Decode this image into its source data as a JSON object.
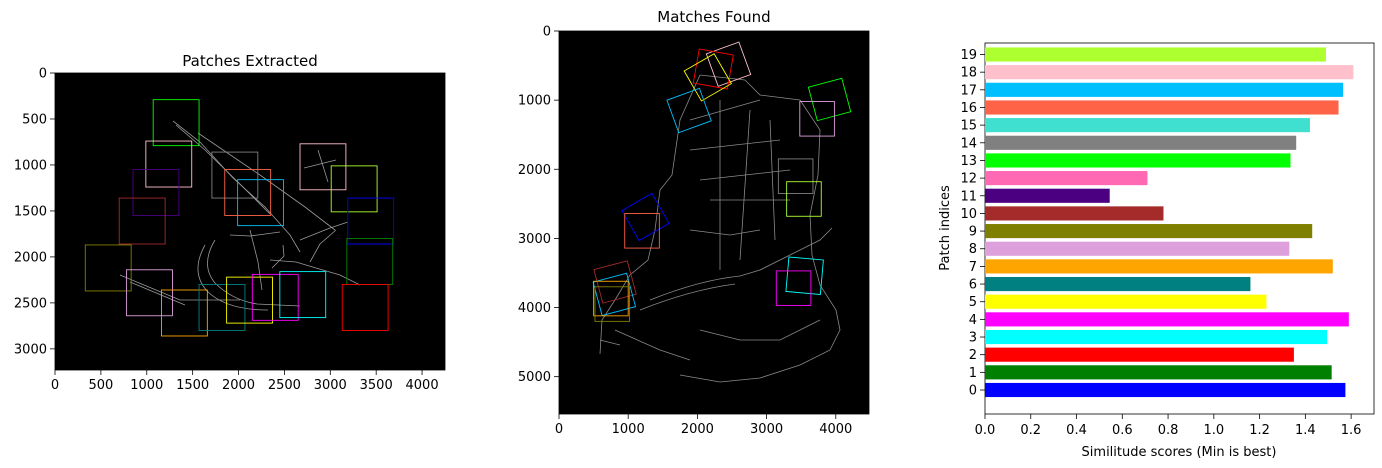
{
  "chart_data": [
    {
      "type": "image",
      "title": "Patches Extracted",
      "xlim": [
        0,
        4250
      ],
      "ylim": [
        3230,
        0
      ],
      "xticks": [
        0,
        500,
        1000,
        1500,
        2000,
        2500,
        3000,
        3500,
        4000
      ],
      "yticks": [
        0,
        500,
        1000,
        1500,
        2000,
        2500,
        3000
      ],
      "patches": [
        {
          "color": "#00ff00",
          "x": 1070,
          "y": 290,
          "w": 500,
          "h": 500
        },
        {
          "color": "#ffc0cb",
          "x": 990,
          "y": 740,
          "w": 500,
          "h": 500
        },
        {
          "color": "#808080",
          "x": 1710,
          "y": 860,
          "w": 500,
          "h": 500
        },
        {
          "color": "#ffc0cb",
          "x": 2670,
          "y": 770,
          "w": 500,
          "h": 500
        },
        {
          "color": "#4b0082",
          "x": 850,
          "y": 1050,
          "w": 500,
          "h": 500
        },
        {
          "color": "#ff6347",
          "x": 1850,
          "y": 1050,
          "w": 500,
          "h": 500
        },
        {
          "color": "#00bfff",
          "x": 1990,
          "y": 1160,
          "w": 500,
          "h": 500
        },
        {
          "color": "#adff2f",
          "x": 3010,
          "y": 1010,
          "w": 500,
          "h": 500
        },
        {
          "color": "#a52a2a",
          "x": 700,
          "y": 1360,
          "w": 500,
          "h": 500
        },
        {
          "color": "#0000ff",
          "x": 3190,
          "y": 1360,
          "w": 500,
          "h": 500
        },
        {
          "color": "#008000",
          "x": 3180,
          "y": 1800,
          "w": 500,
          "h": 500
        },
        {
          "color": "#808000",
          "x": 330,
          "y": 1870,
          "w": 500,
          "h": 500
        },
        {
          "color": "#dda0dd",
          "x": 780,
          "y": 2140,
          "w": 500,
          "h": 500
        },
        {
          "color": "#ffa500",
          "x": 1160,
          "y": 2360,
          "w": 500,
          "h": 500
        },
        {
          "color": "#008080",
          "x": 1570,
          "y": 2300,
          "w": 500,
          "h": 500
        },
        {
          "color": "#ffff00",
          "x": 1870,
          "y": 2220,
          "w": 500,
          "h": 500
        },
        {
          "color": "#ff00ff",
          "x": 2150,
          "y": 2190,
          "w": 500,
          "h": 500
        },
        {
          "color": "#00ffff",
          "x": 2450,
          "y": 2160,
          "w": 500,
          "h": 500
        },
        {
          "color": "#ff0000",
          "x": 3130,
          "y": 2300,
          "w": 500,
          "h": 500
        }
      ]
    },
    {
      "type": "image",
      "title": "Matches Found",
      "xlim": [
        0,
        4480
      ],
      "ylim": [
        5540,
        0
      ],
      "xticks": [
        0,
        1000,
        2000,
        3000,
        4000
      ],
      "yticks": [
        0,
        1000,
        2000,
        3000,
        4000,
        5000
      ],
      "patches": [
        {
          "color": "#ffc0cb",
          "x": 2200,
          "y": 230,
          "w": 500,
          "h": 500,
          "rot": -20
        },
        {
          "color": "#ff0000",
          "x": 1980,
          "y": 300,
          "w": 500,
          "h": 500,
          "rot": 10
        },
        {
          "color": "#ffff00",
          "x": 1900,
          "y": 420,
          "w": 500,
          "h": 500,
          "rot": -30
        },
        {
          "color": "#00ff00",
          "x": 3660,
          "y": 740,
          "w": 500,
          "h": 500,
          "rot": -15
        },
        {
          "color": "#00bfff",
          "x": 1630,
          "y": 900,
          "w": 500,
          "h": 500,
          "rot": -20
        },
        {
          "color": "#dda0dd",
          "x": 3480,
          "y": 1020,
          "w": 500,
          "h": 500
        },
        {
          "color": "#808080",
          "x": 3170,
          "y": 1850,
          "w": 500,
          "h": 500
        },
        {
          "color": "#adff2f",
          "x": 3290,
          "y": 2180,
          "w": 500,
          "h": 500
        },
        {
          "color": "#0000ff",
          "x": 1000,
          "y": 2440,
          "w": 500,
          "h": 500,
          "rot": -30
        },
        {
          "color": "#ff6347",
          "x": 950,
          "y": 2640,
          "w": 500,
          "h": 500
        },
        {
          "color": "#00ffff",
          "x": 3300,
          "y": 3290,
          "w": 500,
          "h": 500,
          "rot": 5
        },
        {
          "color": "#ff00ff",
          "x": 3140,
          "y": 3470,
          "w": 500,
          "h": 500
        },
        {
          "color": "#a52a2a",
          "x": 560,
          "y": 3380,
          "w": 500,
          "h": 500,
          "rot": -15
        },
        {
          "color": "#00bfff",
          "x": 550,
          "y": 3560,
          "w": 500,
          "h": 500,
          "rot": -15
        },
        {
          "color": "#ffa500",
          "x": 500,
          "y": 3620,
          "w": 500,
          "h": 500
        },
        {
          "color": "#808000",
          "x": 520,
          "y": 3700,
          "w": 500,
          "h": 500
        }
      ]
    },
    {
      "type": "bar",
      "orientation": "horizontal",
      "categories": [
        "0",
        "1",
        "2",
        "3",
        "4",
        "5",
        "6",
        "7",
        "8",
        "9",
        "10",
        "11",
        "12",
        "13",
        "14",
        "15",
        "16",
        "17",
        "18",
        "19"
      ],
      "values": [
        1.575,
        1.515,
        1.35,
        1.495,
        1.59,
        1.23,
        1.16,
        1.52,
        1.33,
        1.43,
        0.78,
        0.545,
        0.71,
        1.335,
        1.36,
        1.42,
        1.545,
        1.565,
        1.61,
        1.49
      ],
      "colors": [
        "#0000ff",
        "#008000",
        "#ff0000",
        "#00ffff",
        "#ff00ff",
        "#ffff00",
        "#008080",
        "#ffa500",
        "#dda0dd",
        "#808000",
        "#a52a2a",
        "#4b0082",
        "#ff69b4",
        "#00ff00",
        "#808080",
        "#40e0d0",
        "#ff6347",
        "#00bfff",
        "#ffc0cb",
        "#adff2f"
      ],
      "xlabel": "Similitude scores (Min is best)",
      "ylabel": "Patch indices",
      "xlim": [
        0,
        1.7
      ],
      "xticks": [
        "0.0",
        "0.2",
        "0.4",
        "0.6",
        "0.8",
        "1.0",
        "1.2",
        "1.4",
        "1.6"
      ]
    }
  ]
}
